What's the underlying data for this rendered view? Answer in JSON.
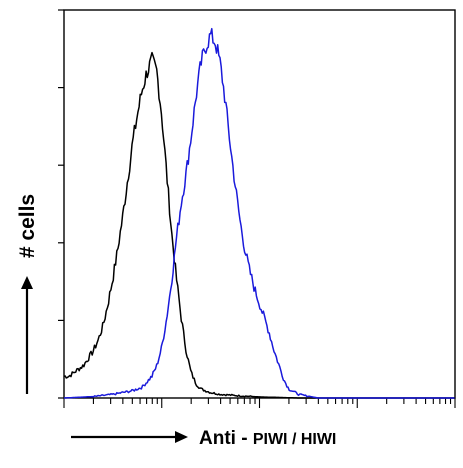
{
  "chart_data": {
    "type": "line",
    "chart_kind": "flow cytometry histogram",
    "title": "",
    "xlabel_prefix": "Anti - ",
    "xlabel_target": "PIWI / HIWI",
    "ylabel": "# cells",
    "x_scale": "log",
    "x_range_decades": [
      0,
      4
    ],
    "y_range_relative": [
      0,
      1.07
    ],
    "grid": false,
    "legend": "none",
    "series": [
      {
        "color": "#000000",
        "peak_log_x": 0.92,
        "peak_height": 0.93,
        "points": [
          [
            0.0,
            0.06
          ],
          [
            0.05,
            0.06
          ],
          [
            0.1,
            0.07
          ],
          [
            0.15,
            0.08
          ],
          [
            0.2,
            0.09
          ],
          [
            0.25,
            0.11
          ],
          [
            0.3,
            0.13
          ],
          [
            0.35,
            0.16
          ],
          [
            0.4,
            0.2
          ],
          [
            0.45,
            0.26
          ],
          [
            0.5,
            0.33
          ],
          [
            0.55,
            0.41
          ],
          [
            0.6,
            0.5
          ],
          [
            0.65,
            0.6
          ],
          [
            0.7,
            0.7
          ],
          [
            0.75,
            0.78
          ],
          [
            0.8,
            0.85
          ],
          [
            0.85,
            0.9
          ],
          [
            0.9,
            0.93
          ],
          [
            0.95,
            0.9
          ],
          [
            1.0,
            0.78
          ],
          [
            1.05,
            0.62
          ],
          [
            1.1,
            0.46
          ],
          [
            1.15,
            0.33
          ],
          [
            1.2,
            0.22
          ],
          [
            1.25,
            0.13
          ],
          [
            1.3,
            0.07
          ],
          [
            1.35,
            0.04
          ],
          [
            1.4,
            0.025
          ],
          [
            1.5,
            0.015
          ],
          [
            1.6,
            0.01
          ],
          [
            1.8,
            0.006
          ],
          [
            2.0,
            0.003
          ],
          [
            2.4,
            0.0
          ],
          [
            4.0,
            0.0
          ]
        ]
      },
      {
        "color": "#1a1adb",
        "peak_log_x": 1.52,
        "peak_height": 1.0,
        "points": [
          [
            0.0,
            0.0
          ],
          [
            0.3,
            0.004
          ],
          [
            0.5,
            0.01
          ],
          [
            0.7,
            0.02
          ],
          [
            0.8,
            0.03
          ],
          [
            0.9,
            0.06
          ],
          [
            0.95,
            0.09
          ],
          [
            1.0,
            0.14
          ],
          [
            1.05,
            0.22
          ],
          [
            1.1,
            0.32
          ],
          [
            1.15,
            0.44
          ],
          [
            1.2,
            0.54
          ],
          [
            1.25,
            0.62
          ],
          [
            1.3,
            0.72
          ],
          [
            1.35,
            0.83
          ],
          [
            1.4,
            0.92
          ],
          [
            1.45,
            0.97
          ],
          [
            1.5,
            1.0
          ],
          [
            1.55,
            0.98
          ],
          [
            1.6,
            0.92
          ],
          [
            1.65,
            0.82
          ],
          [
            1.7,
            0.7
          ],
          [
            1.75,
            0.59
          ],
          [
            1.8,
            0.49
          ],
          [
            1.85,
            0.41
          ],
          [
            1.9,
            0.35
          ],
          [
            1.95,
            0.3
          ],
          [
            2.0,
            0.26
          ],
          [
            2.05,
            0.22
          ],
          [
            2.1,
            0.18
          ],
          [
            2.15,
            0.13
          ],
          [
            2.2,
            0.09
          ],
          [
            2.25,
            0.05
          ],
          [
            2.3,
            0.025
          ],
          [
            2.4,
            0.01
          ],
          [
            2.6,
            0.0
          ],
          [
            4.0,
            0.0
          ]
        ]
      }
    ]
  }
}
